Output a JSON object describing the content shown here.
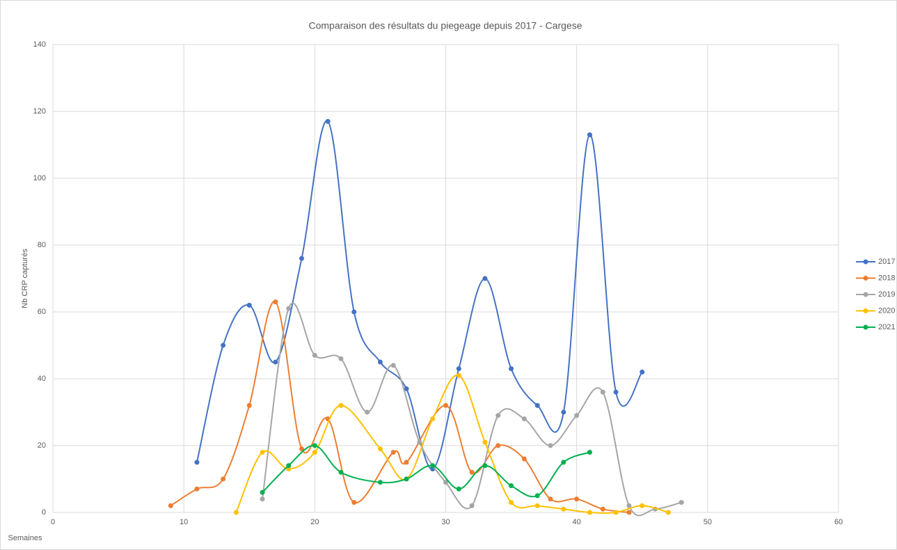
{
  "chart_data": {
    "type": "line",
    "title": "Comparaison des résultats du piegeage depuis 2017 - Cargese",
    "x_label": "Semaines",
    "y_label": "Nb CRP capturés",
    "xlim": [
      0,
      60
    ],
    "xticks": [
      0,
      10,
      20,
      30,
      40,
      50,
      60
    ],
    "ylim": [
      0,
      140
    ],
    "yticks": [
      0,
      20,
      40,
      60,
      80,
      100,
      120,
      140
    ],
    "grid": true,
    "smooth": true,
    "legend": "right",
    "series": [
      {
        "name": "2017",
        "color": "#4472c4",
        "x": [
          11,
          13,
          15,
          17,
          19,
          21,
          23,
          25,
          27,
          29,
          31,
          33,
          35,
          37,
          39,
          41,
          43,
          45
        ],
        "values": [
          15,
          50,
          62,
          45,
          76,
          117,
          60,
          45,
          37,
          13,
          43,
          70,
          43,
          32,
          30,
          113,
          36,
          42
        ]
      },
      {
        "name": "2018",
        "color": "#ed7d31",
        "x": [
          9,
          11,
          13,
          15,
          17,
          19,
          21,
          23,
          26,
          27,
          30,
          32,
          34,
          36,
          38,
          40,
          42,
          44
        ],
        "values": [
          2,
          7,
          10,
          32,
          63,
          19,
          28,
          3,
          18,
          15,
          32,
          12,
          20,
          16,
          4,
          4,
          1,
          0
        ]
      },
      {
        "name": "2019",
        "color": "#a5a5a5",
        "x": [
          16,
          18,
          20,
          22,
          24,
          26,
          28,
          30,
          32,
          34,
          36,
          38,
          40,
          42,
          44,
          46,
          48
        ],
        "values": [
          4,
          61,
          47,
          46,
          30,
          44,
          21,
          9,
          2,
          29,
          28,
          20,
          29,
          36,
          2,
          1,
          3
        ]
      },
      {
        "name": "2020",
        "color": "#ffc000",
        "x": [
          14,
          16,
          18,
          20,
          22,
          25,
          27,
          29,
          31,
          33,
          35,
          37,
          39,
          41,
          43,
          45,
          47
        ],
        "values": [
          0,
          18,
          13,
          18,
          32,
          19,
          10,
          28,
          41,
          21,
          3,
          2,
          1,
          0,
          0,
          2,
          0
        ]
      },
      {
        "name": "2021",
        "color": "#00b050",
        "x": [
          16,
          18,
          20,
          22,
          25,
          27,
          29,
          31,
          33,
          35,
          37,
          39,
          41
        ],
        "values": [
          6,
          14,
          20,
          12,
          9,
          10,
          14,
          7,
          14,
          8,
          5,
          15,
          18
        ]
      }
    ]
  }
}
